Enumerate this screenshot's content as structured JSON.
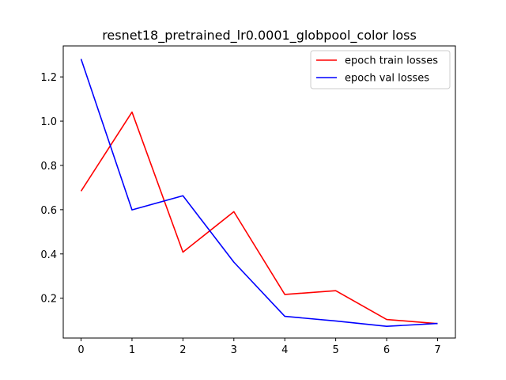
{
  "chart_data": {
    "type": "line",
    "title": "resnet18_pretrained_lr0.0001_globpool_color loss",
    "xlabel": "",
    "ylabel": "",
    "x": [
      0,
      1,
      2,
      3,
      4,
      5,
      6,
      7
    ],
    "xlim": [
      -0.35,
      7.35
    ],
    "ylim": [
      0.02,
      1.34
    ],
    "xticks": [
      "0",
      "1",
      "2",
      "3",
      "4",
      "5",
      "6",
      "7"
    ],
    "yticks": [
      "0.2",
      "0.4",
      "0.6",
      "0.8",
      "1.0",
      "1.2"
    ],
    "grid": false,
    "legend_position": "top-right",
    "series": [
      {
        "name": "epoch train losses",
        "color": "#ff0000",
        "values": [
          0.684,
          1.041,
          0.408,
          0.591,
          0.217,
          0.234,
          0.104,
          0.085
        ]
      },
      {
        "name": "epoch val losses",
        "color": "#0000ff",
        "values": [
          1.281,
          0.599,
          0.663,
          0.363,
          0.118,
          0.097,
          0.073,
          0.086
        ]
      }
    ]
  }
}
